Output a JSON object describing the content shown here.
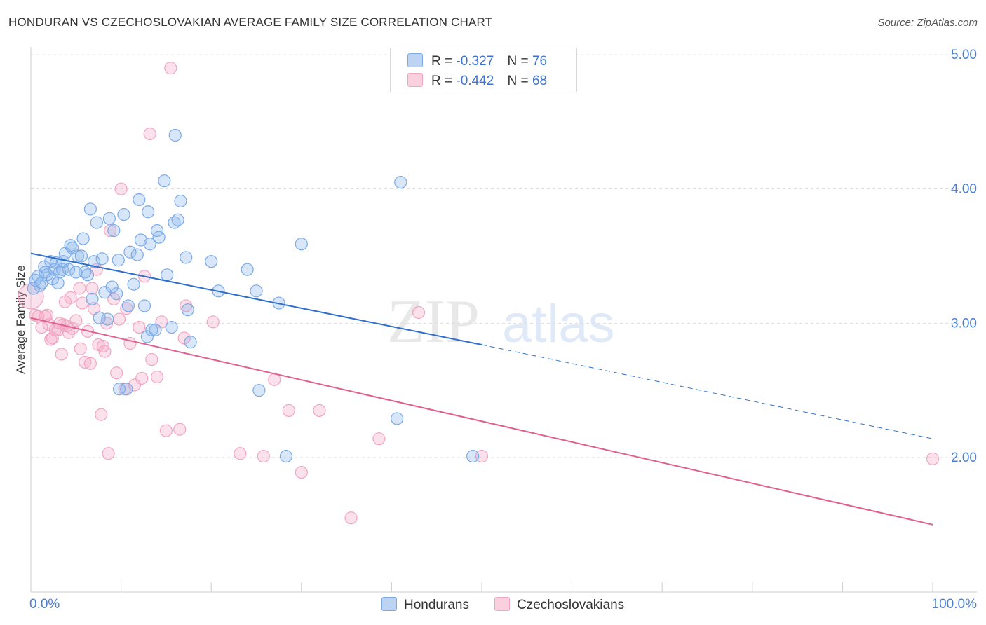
{
  "header": {
    "title": "HONDURAN VS CZECHOSLOVAKIAN AVERAGE FAMILY SIZE CORRELATION CHART",
    "source": "Source: ZipAtlas.com"
  },
  "watermark": {
    "zip": "ZIP",
    "atlas": "atlas"
  },
  "legend": {
    "rows": [
      {
        "r_label": "R =",
        "r_value": "-0.327",
        "n_label": "N =",
        "n_value": "76"
      },
      {
        "r_label": "R =",
        "r_value": "-0.442",
        "n_label": "N =",
        "n_value": "68"
      }
    ]
  },
  "x_axis": {
    "left_label": "0.0%",
    "right_label": "100.0%"
  },
  "chart_data": {
    "type": "scatter",
    "title": "HONDURAN VS CZECHOSLOVAKIAN AVERAGE FAMILY SIZE CORRELATION CHART",
    "xlabel": "",
    "ylabel": "Average Family Size",
    "xlim": [
      0,
      100
    ],
    "ylim": [
      1.0,
      5.15
    ],
    "y_ticks": [
      {
        "value": 2.0,
        "label": "2.00"
      },
      {
        "value": 3.0,
        "label": "3.00"
      },
      {
        "value": 4.0,
        "label": "4.00"
      },
      {
        "value": 5.0,
        "label": "5.00"
      }
    ],
    "x_tick_labels": [
      "0.0%",
      "100.0%"
    ],
    "grid": "horizontal dashed",
    "legend_position": "top-center",
    "series": [
      {
        "name": "Hondurans",
        "color": "#7aaae8",
        "line_color": "#2f6fcc",
        "r": -0.327,
        "n": 76,
        "trend": {
          "x0": 0,
          "y0": 3.52,
          "x1": 50,
          "y1": 2.84,
          "dashed_to_x": 100,
          "dashed_to_y": 2.14
        },
        "points": [
          [
            0.3,
            3.26
          ],
          [
            0.5,
            3.32
          ],
          [
            0.8,
            3.35
          ],
          [
            1.0,
            3.28
          ],
          [
            1.2,
            3.3
          ],
          [
            1.5,
            3.42
          ],
          [
            1.6,
            3.38
          ],
          [
            1.8,
            3.36
          ],
          [
            2.2,
            3.46
          ],
          [
            2.4,
            3.33
          ],
          [
            2.6,
            3.4
          ],
          [
            2.8,
            3.45
          ],
          [
            3.0,
            3.3
          ],
          [
            3.2,
            3.38
          ],
          [
            3.5,
            3.4
          ],
          [
            3.6,
            3.46
          ],
          [
            3.8,
            3.52
          ],
          [
            4.2,
            3.4
          ],
          [
            4.4,
            3.58
          ],
          [
            4.6,
            3.56
          ],
          [
            5.0,
            3.38
          ],
          [
            5.2,
            3.5
          ],
          [
            5.6,
            3.5
          ],
          [
            5.8,
            3.63
          ],
          [
            6.0,
            3.38
          ],
          [
            6.3,
            3.36
          ],
          [
            6.6,
            3.85
          ],
          [
            6.8,
            3.18
          ],
          [
            7.0,
            3.46
          ],
          [
            7.3,
            3.75
          ],
          [
            7.6,
            3.04
          ],
          [
            7.9,
            3.48
          ],
          [
            8.2,
            3.23
          ],
          [
            8.5,
            3.03
          ],
          [
            8.7,
            3.78
          ],
          [
            9.0,
            3.27
          ],
          [
            9.2,
            3.69
          ],
          [
            9.5,
            3.22
          ],
          [
            9.7,
            3.47
          ],
          [
            9.8,
            2.51
          ],
          [
            10.3,
            3.81
          ],
          [
            10.6,
            2.51
          ],
          [
            10.8,
            3.13
          ],
          [
            11.0,
            3.53
          ],
          [
            11.4,
            3.29
          ],
          [
            11.8,
            3.51
          ],
          [
            12.0,
            3.92
          ],
          [
            12.2,
            3.62
          ],
          [
            12.6,
            3.13
          ],
          [
            12.9,
            2.9
          ],
          [
            13.0,
            3.83
          ],
          [
            13.2,
            3.59
          ],
          [
            13.4,
            2.95
          ],
          [
            13.8,
            2.95
          ],
          [
            14.0,
            3.69
          ],
          [
            14.2,
            3.64
          ],
          [
            14.8,
            4.06
          ],
          [
            15.1,
            3.36
          ],
          [
            15.6,
            2.97
          ],
          [
            15.9,
            3.75
          ],
          [
            16.0,
            4.4
          ],
          [
            16.3,
            3.77
          ],
          [
            16.6,
            3.91
          ],
          [
            17.2,
            3.49
          ],
          [
            17.4,
            3.1
          ],
          [
            17.7,
            2.86
          ],
          [
            20.0,
            3.46
          ],
          [
            20.8,
            3.24
          ],
          [
            24.0,
            3.4
          ],
          [
            25.0,
            3.24
          ],
          [
            25.3,
            2.5
          ],
          [
            27.5,
            3.15
          ],
          [
            28.3,
            2.01
          ],
          [
            30.0,
            3.59
          ],
          [
            40.6,
            2.29
          ],
          [
            41.0,
            4.05
          ],
          [
            49.0,
            2.01
          ]
        ]
      },
      {
        "name": "Czechoslovakians",
        "color": "#f2a5c0",
        "line_color": "#e0608f",
        "r": -0.442,
        "n": 68,
        "trend": {
          "x0": 0,
          "y0": 3.04,
          "x1": 100,
          "y1": 1.5
        },
        "points": [
          [
            0.0,
            3.2
          ],
          [
            0.5,
            3.06
          ],
          [
            0.8,
            3.05
          ],
          [
            1.2,
            2.97
          ],
          [
            1.6,
            3.05
          ],
          [
            1.8,
            3.06
          ],
          [
            2.0,
            2.99
          ],
          [
            2.2,
            2.88
          ],
          [
            2.4,
            2.89
          ],
          [
            2.7,
            2.95
          ],
          [
            3.0,
            2.95
          ],
          [
            3.2,
            3.0
          ],
          [
            3.4,
            2.77
          ],
          [
            3.6,
            2.99
          ],
          [
            3.8,
            3.16
          ],
          [
            4.0,
            2.98
          ],
          [
            4.2,
            2.93
          ],
          [
            4.4,
            3.19
          ],
          [
            4.6,
            2.96
          ],
          [
            5.0,
            3.02
          ],
          [
            5.4,
            3.26
          ],
          [
            5.5,
            2.81
          ],
          [
            5.7,
            3.15
          ],
          [
            6.0,
            2.71
          ],
          [
            6.3,
            2.94
          ],
          [
            6.6,
            2.7
          ],
          [
            6.8,
            3.26
          ],
          [
            7.0,
            3.11
          ],
          [
            7.3,
            3.4
          ],
          [
            7.5,
            2.84
          ],
          [
            7.8,
            2.32
          ],
          [
            8.0,
            2.83
          ],
          [
            8.2,
            2.79
          ],
          [
            8.4,
            3.0
          ],
          [
            8.6,
            2.03
          ],
          [
            8.8,
            3.69
          ],
          [
            9.2,
            3.18
          ],
          [
            9.5,
            2.63
          ],
          [
            9.8,
            3.03
          ],
          [
            10.0,
            4.0
          ],
          [
            10.4,
            2.51
          ],
          [
            10.6,
            3.11
          ],
          [
            11.0,
            2.85
          ],
          [
            11.5,
            2.54
          ],
          [
            12.0,
            2.97
          ],
          [
            12.6,
            3.35
          ],
          [
            13.2,
            4.41
          ],
          [
            13.4,
            2.73
          ],
          [
            14.0,
            2.6
          ],
          [
            14.5,
            3.01
          ],
          [
            15.0,
            2.2
          ],
          [
            15.5,
            4.9
          ],
          [
            16.5,
            2.21
          ],
          [
            17.2,
            3.13
          ],
          [
            17.0,
            2.89
          ],
          [
            20.2,
            3.01
          ],
          [
            23.2,
            2.03
          ],
          [
            25.8,
            2.01
          ],
          [
            27.0,
            2.58
          ],
          [
            28.6,
            2.35
          ],
          [
            30.0,
            1.89
          ],
          [
            32.0,
            2.35
          ],
          [
            35.5,
            1.55
          ],
          [
            38.6,
            2.14
          ],
          [
            43.0,
            3.08
          ],
          [
            50.0,
            2.01
          ],
          [
            100.0,
            1.99
          ],
          [
            12.3,
            2.59
          ]
        ]
      }
    ]
  }
}
